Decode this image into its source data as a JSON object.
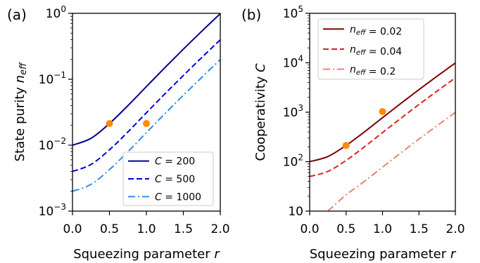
{
  "chart_data": [
    {
      "panel_label": "(a)",
      "type": "line",
      "xlabel": "Squeezing parameter r",
      "ylabel": "State purity n_eff",
      "xlim": [
        0,
        2
      ],
      "ylim": [
        0.001,
        1
      ],
      "yscale": "log",
      "xticks": [
        "0.0",
        "0.5",
        "1.0",
        "1.5",
        "2.0"
      ],
      "yticks": [
        "10^-3",
        "10^-2",
        "10^-1",
        "10^0"
      ],
      "legend_placement": "lower-right",
      "series": [
        {
          "name": "C = 200",
          "color": "#00008b",
          "style": "solid",
          "x": [
            0,
            0.25,
            0.5,
            0.75,
            1.0,
            1.25,
            1.5,
            1.75,
            2.0
          ],
          "y": [
            0.01,
            0.0127,
            0.0213,
            0.0398,
            0.0774,
            0.15,
            0.286,
            0.536,
            0.99
          ]
        },
        {
          "name": "C = 500",
          "color": "#0000dd",
          "style": "dashed",
          "x": [
            0,
            0.25,
            0.5,
            0.75,
            1.0,
            1.25,
            1.5,
            1.75,
            2.0
          ],
          "y": [
            0.004,
            0.0051,
            0.0085,
            0.0159,
            0.031,
            0.06,
            0.114,
            0.214,
            0.397
          ]
        },
        {
          "name": "C = 1000",
          "color": "#2e8ee8",
          "style": "dashdot",
          "x": [
            0,
            0.25,
            0.5,
            0.75,
            1.0,
            1.25,
            1.5,
            1.75,
            2.0
          ],
          "y": [
            0.002,
            0.00254,
            0.00426,
            0.00796,
            0.0155,
            0.03,
            0.0572,
            0.107,
            0.199
          ]
        }
      ],
      "markers": [
        {
          "x": 0.5,
          "y": 0.0213,
          "color": "#ff8c00"
        },
        {
          "x": 1.0,
          "y": 0.0213,
          "color": "#ff8c00"
        }
      ]
    },
    {
      "panel_label": "(b)",
      "type": "line",
      "xlabel": "Squeezing parameter r",
      "ylabel": "Cooperativity C",
      "xlim": [
        0,
        2
      ],
      "ylim": [
        10,
        100000
      ],
      "yscale": "log",
      "xticks": [
        "0.0",
        "0.5",
        "1.0",
        "1.5",
        "2.0"
      ],
      "yticks": [
        "10",
        "10^2",
        "10^3",
        "10^4",
        "10^5"
      ],
      "legend_placement": "top-left",
      "series": [
        {
          "name": "n_eff = 0.02",
          "color": "#800000",
          "style": "solid",
          "x": [
            0,
            0.25,
            0.5,
            0.75,
            1.0,
            1.25,
            1.5,
            1.75,
            2.0
          ],
          "y": [
            100,
            127,
            213,
            398,
            774,
            1500,
            2860,
            5360,
            9900
          ]
        },
        {
          "name": "n_eff = 0.04",
          "color": "#e02020",
          "style": "dashed",
          "x": [
            0,
            0.25,
            0.5,
            0.75,
            1.0,
            1.25,
            1.5,
            1.75,
            2.0
          ],
          "y": [
            50,
            63.5,
            106,
            199,
            387,
            750,
            1430,
            2680,
            4950
          ]
        },
        {
          "name": "n_eff = 0.2",
          "color": "#f08070",
          "style": "dashdot",
          "x": [
            0.25,
            0.5,
            0.75,
            1.0,
            1.25,
            1.5,
            1.75,
            2.0
          ],
          "y": [
            10,
            21.3,
            39.8,
            77.4,
            150,
            286,
            536,
            990
          ]
        }
      ],
      "markers": [
        {
          "x": 0.5,
          "y": 213,
          "color": "#ff8c00"
        },
        {
          "x": 1.0,
          "y": 1030,
          "color": "#ff8c00"
        }
      ]
    }
  ]
}
